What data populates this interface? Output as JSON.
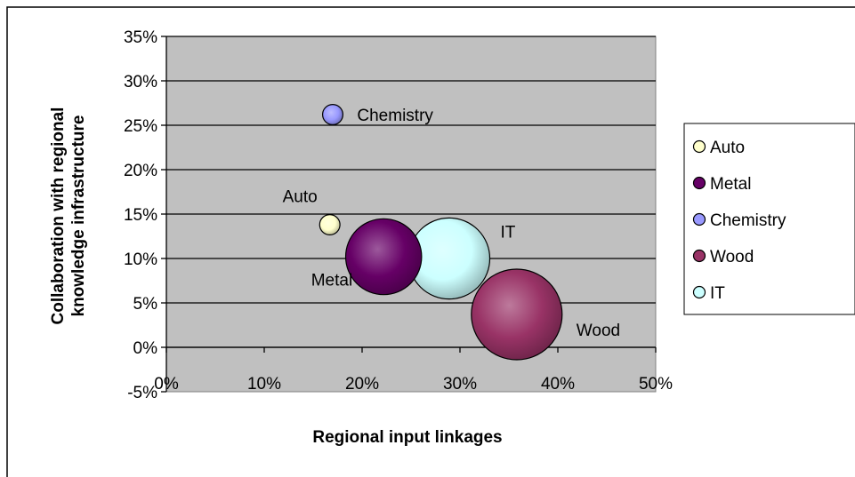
{
  "chart_data": {
    "type": "bubble",
    "xlabel": "Regional input linkages",
    "ylabel_line1": "Collaboration with regional",
    "ylabel_line2": "knowledge infrastructure",
    "xlim": [
      0,
      0.5
    ],
    "ylim": [
      -0.05,
      0.35
    ],
    "x_ticks": [
      {
        "value": 0,
        "label": "0%"
      },
      {
        "value": 0.1,
        "label": "10%"
      },
      {
        "value": 0.2,
        "label": "20%"
      },
      {
        "value": 0.3,
        "label": "30%"
      },
      {
        "value": 0.4,
        "label": "40%"
      },
      {
        "value": 0.5,
        "label": "50%"
      }
    ],
    "y_ticks": [
      {
        "value": 0.35,
        "label": "35%"
      },
      {
        "value": 0.3,
        "label": "30%"
      },
      {
        "value": 0.25,
        "label": "25%"
      },
      {
        "value": 0.2,
        "label": "20%"
      },
      {
        "value": 0.15,
        "label": "15%"
      },
      {
        "value": 0.1,
        "label": "10%"
      },
      {
        "value": 0.05,
        "label": "5%"
      },
      {
        "value": 0.0,
        "label": "0%"
      },
      {
        "value": -0.05,
        "label": "-5%"
      }
    ],
    "grid": true,
    "plot_background": "#c0c0c0",
    "legend_position": "right",
    "series": [
      {
        "name": "Auto",
        "x": 0.167,
        "y": 0.138,
        "size": 1.0,
        "color": "#ffffcc",
        "label_pos": "above-left"
      },
      {
        "name": "Metal",
        "x": 0.222,
        "y": 0.102,
        "size": 14,
        "color": "#660066",
        "label_pos": "below-left"
      },
      {
        "name": "Chemistry",
        "x": 0.17,
        "y": 0.262,
        "size": 1.0,
        "color": "#9999ff",
        "label_pos": "right"
      },
      {
        "name": "Wood",
        "x": 0.358,
        "y": 0.037,
        "size": 20,
        "color": "#993366",
        "label_pos": "right"
      },
      {
        "name": "IT",
        "x": 0.289,
        "y": 0.1,
        "size": 16,
        "color": "#ccffff",
        "label_pos": "above-right"
      }
    ]
  }
}
